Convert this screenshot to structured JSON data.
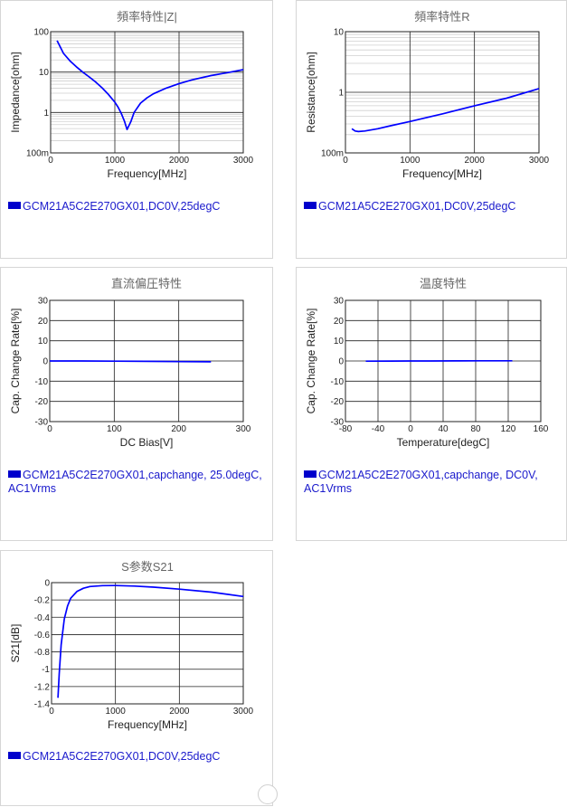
{
  "charts": [
    {
      "id": "impedance",
      "legend": "GCM21A5C2E270GX01,DC0V,25degC",
      "color": "#0000ff",
      "chart_data": {
        "type": "line",
        "title": "頻率特性|Z|",
        "xlabel": "Frequency[MHz]",
        "ylabel": "Impedance[ohm]",
        "xlim": [
          0,
          3000
        ],
        "ylim": [
          0.1,
          100
        ],
        "yscale": "log",
        "grid": true,
        "xticks": [
          0,
          1000,
          2000,
          3000
        ],
        "xtick_labels": [
          "0",
          "1000",
          "2000",
          "3000"
        ],
        "yticks": [
          0.1,
          1,
          10,
          100
        ],
        "ytick_labels": [
          "100m",
          "1",
          "10",
          "100"
        ],
        "series": [
          {
            "x": [
              100,
              200,
              300,
              400,
              500,
              600,
              700,
              800,
              900,
              1000,
              1050,
              1100,
              1150,
              1190,
              1250,
              1300,
              1400,
              1500,
              1600,
              1800,
              2000,
              2200,
              2500,
              2800,
              3000
            ],
            "y": [
              60,
              29,
              19,
              13.5,
              10,
              7.6,
              5.7,
              4.1,
              2.8,
              1.8,
              1.35,
              0.95,
              0.6,
              0.38,
              0.6,
              1.0,
              1.7,
              2.3,
              2.9,
              4.0,
              5.2,
              6.4,
              8.2,
              10.0,
              11.5
            ]
          }
        ]
      }
    },
    {
      "id": "resistance",
      "legend": "GCM21A5C2E270GX01,DC0V,25degC",
      "color": "#0000ff",
      "chart_data": {
        "type": "line",
        "title": "頻率特性R",
        "xlabel": "Frequency[MHz]",
        "ylabel": "Resistance[ohm]",
        "xlim": [
          0,
          3000
        ],
        "ylim": [
          0.1,
          10
        ],
        "yscale": "log",
        "grid": true,
        "xticks": [
          0,
          1000,
          2000,
          3000
        ],
        "xtick_labels": [
          "0",
          "1000",
          "2000",
          "3000"
        ],
        "yticks": [
          0.1,
          1,
          10
        ],
        "ytick_labels": [
          "100m",
          "1",
          "10"
        ],
        "series": [
          {
            "x": [
              100,
              150,
              200,
              300,
              500,
              700,
              1000,
              1500,
              2000,
              2500,
              3000
            ],
            "y": [
              0.25,
              0.23,
              0.225,
              0.23,
              0.25,
              0.28,
              0.33,
              0.44,
              0.6,
              0.8,
              1.15
            ]
          }
        ]
      }
    },
    {
      "id": "dcbias",
      "legend": "GCM21A5C2E270GX01,capchange, 25.0degC, AC1Vrms",
      "color": "#0000ff",
      "chart_data": {
        "type": "line",
        "title": "直流偏圧特性",
        "xlabel": "DC Bias[V]",
        "ylabel": "Cap. Change Rate[%]",
        "xlim": [
          0,
          300
        ],
        "ylim": [
          -30,
          30
        ],
        "grid": true,
        "xticks": [
          0,
          100,
          200,
          300
        ],
        "xtick_labels": [
          "0",
          "100",
          "200",
          "300"
        ],
        "yticks": [
          -30,
          -20,
          -10,
          0,
          10,
          20,
          30
        ],
        "ytick_labels": [
          "-30",
          "-20",
          "-10",
          "0",
          "10",
          "20",
          "30"
        ],
        "series": [
          {
            "x": [
              0,
              50,
              100,
              150,
              200,
              250
            ],
            "y": [
              0,
              0,
              -0.1,
              -0.2,
              -0.3,
              -0.4
            ]
          }
        ]
      }
    },
    {
      "id": "temperature",
      "legend": "GCM21A5C2E270GX01,capchange, DC0V, AC1Vrms",
      "color": "#0000ff",
      "chart_data": {
        "type": "line",
        "title": "温度特性",
        "xlabel": "Temperature[degC]",
        "ylabel": "Cap. Change Rate[%]",
        "xlim": [
          -80,
          160
        ],
        "ylim": [
          -30,
          30
        ],
        "grid": true,
        "xticks": [
          -80,
          -40,
          0,
          40,
          80,
          120,
          160
        ],
        "xtick_labels": [
          "-80",
          "-40",
          "0",
          "40",
          "80",
          "120",
          "160"
        ],
        "yticks": [
          -30,
          -20,
          -10,
          0,
          10,
          20,
          30
        ],
        "ytick_labels": [
          "-30",
          "-20",
          "-10",
          "0",
          "10",
          "20",
          "30"
        ],
        "series": [
          {
            "x": [
              -55,
              -25,
              0,
              25,
              55,
              85,
              125
            ],
            "y": [
              -0.1,
              -0.05,
              0,
              0,
              0.05,
              0.1,
              0.1
            ]
          }
        ]
      }
    },
    {
      "id": "s21",
      "legend": "GCM21A5C2E270GX01,DC0V,25degC",
      "color": "#0000ff",
      "chart_data": {
        "type": "line",
        "title": "S参数S21",
        "xlabel": "Frequency[MHz]",
        "ylabel": "S21[dB]",
        "xlim": [
          0,
          3000
        ],
        "ylim": [
          -1.4,
          0
        ],
        "grid": true,
        "xticks": [
          0,
          1000,
          2000,
          3000
        ],
        "xtick_labels": [
          "0",
          "1000",
          "2000",
          "3000"
        ],
        "yticks": [
          -1.4,
          -1.2,
          -1,
          -0.8,
          -0.6,
          -0.4,
          -0.2,
          0
        ],
        "ytick_labels": [
          "-1.4",
          "-1.2",
          "-1",
          "-0.8",
          "-0.6",
          "-0.4",
          "-0.2",
          "0"
        ],
        "series": [
          {
            "x": [
              100,
              120,
              150,
              200,
              250,
              300,
              400,
              500,
              600,
              800,
              1000,
              1300,
              1600,
              2000,
              2500,
              3000
            ],
            "y": [
              -1.33,
              -1.05,
              -0.72,
              -0.42,
              -0.27,
              -0.18,
              -0.1,
              -0.065,
              -0.045,
              -0.035,
              -0.033,
              -0.04,
              -0.052,
              -0.075,
              -0.11,
              -0.16
            ]
          }
        ]
      }
    }
  ]
}
